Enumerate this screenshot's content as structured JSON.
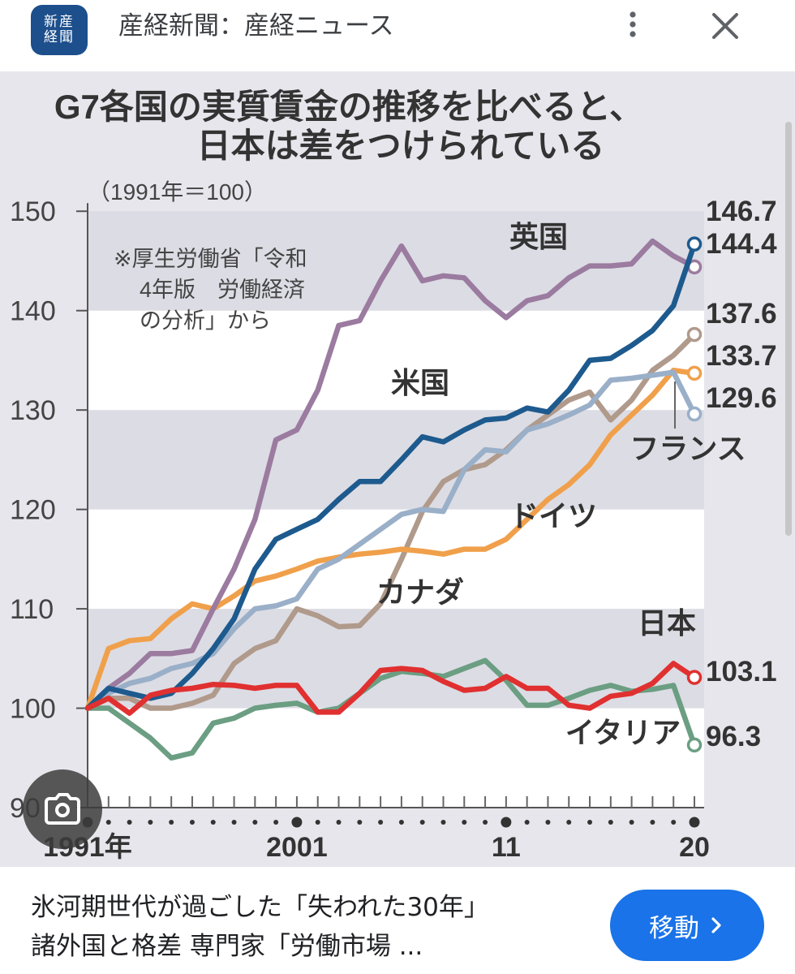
{
  "header": {
    "logo_text": "新産経聞",
    "source_title": "産経新聞：産経ニュース",
    "icons": [
      "more-vert-icon",
      "close-icon"
    ]
  },
  "chart_data": {
    "type": "line",
    "title_lines": [
      "G7各国の実質賃金の推移を比べると、",
      "日本は差をつけられている"
    ],
    "unit_note": "（1991年＝100）",
    "source_note": [
      "※厚生労働省「令和",
      "4年版　労働経済",
      "の分析」から"
    ],
    "x_tick_labels": [
      {
        "year": 1991,
        "label": "1991年"
      },
      {
        "year": 2001,
        "label": "2001"
      },
      {
        "year": 2011,
        "label": "11"
      },
      {
        "year": 2020,
        "label": "20"
      }
    ],
    "x_range": [
      1991,
      2020
    ],
    "y_ticks": [
      90,
      100,
      110,
      120,
      130,
      140,
      150
    ],
    "y_tick_labels": [
      "90",
      "100",
      "110",
      "120",
      "130",
      "140",
      "150"
    ],
    "ylim": [
      90,
      151
    ],
    "x": [
      1991,
      1992,
      1993,
      1994,
      1995,
      1996,
      1997,
      1998,
      1999,
      2000,
      2001,
      2002,
      2003,
      2004,
      2005,
      2006,
      2007,
      2008,
      2009,
      2010,
      2011,
      2012,
      2013,
      2014,
      2015,
      2016,
      2017,
      2018,
      2019,
      2020
    ],
    "series": [
      {
        "name": "英国",
        "color": "#9b7b9f",
        "end_label": "144.4",
        "values": [
          100,
          102,
          103.5,
          105.5,
          105.5,
          105.8,
          110,
          114,
          119,
          127,
          128,
          132,
          138.5,
          139,
          143,
          146.5,
          143,
          143.5,
          143.3,
          141,
          139.3,
          141,
          141.5,
          143.3,
          144.5,
          144.5,
          144.7,
          147,
          145.5,
          144.4
        ]
      },
      {
        "name": "米国",
        "color": "#1d5a8e",
        "end_label": "146.7",
        "values": [
          100,
          102,
          101.5,
          101,
          101.5,
          103.5,
          106,
          109,
          114,
          117,
          118,
          119,
          121,
          122.8,
          122.8,
          125,
          127.3,
          126.8,
          128,
          129,
          129.2,
          130.2,
          129.8,
          132,
          135,
          135.2,
          136.5,
          138,
          140.5,
          146.7
        ]
      },
      {
        "name": "フランス",
        "color": "#9aafc8",
        "end_label": "129.6",
        "values": [
          100,
          101.5,
          102.5,
          103,
          104,
          104.5,
          105.5,
          108,
          110,
          110.3,
          111,
          114,
          115,
          116.5,
          118,
          119.5,
          120,
          119.8,
          124,
          126,
          125.8,
          128,
          128.6,
          129.5,
          130.5,
          133,
          133.2,
          133.5,
          133.8,
          129.6
        ]
      },
      {
        "name": "ドイツ",
        "color": "#f0a04b",
        "end_label": "133.7",
        "values": [
          100,
          106,
          106.8,
          107,
          109,
          110.5,
          110,
          111.3,
          112.8,
          113.3,
          114,
          114.8,
          115.2,
          115.5,
          115.7,
          116,
          115.8,
          115.5,
          116,
          116,
          117,
          119,
          121,
          122.5,
          124.5,
          127.5,
          129.5,
          131.5,
          134,
          133.7
        ]
      },
      {
        "name": "カナダ",
        "color": "#b09a8b",
        "end_label": "137.6",
        "values": [
          100,
          101,
          101,
          100,
          100,
          100.5,
          101.3,
          104.5,
          106,
          106.8,
          110,
          109.3,
          108.2,
          108.3,
          110.5,
          115,
          119.8,
          122.8,
          124,
          124.5,
          126,
          128,
          129.5,
          131,
          131.8,
          129,
          131,
          134,
          135.5,
          137.6
        ]
      },
      {
        "name": "日本",
        "color": "#e03030",
        "end_label": "103.1",
        "values": [
          100,
          101,
          99.5,
          101.3,
          101.8,
          102,
          102.4,
          102.3,
          102,
          102.3,
          102.3,
          99.6,
          99.6,
          101.5,
          103.8,
          104,
          103.8,
          102.7,
          101.8,
          102,
          103.2,
          102,
          102,
          100.3,
          100,
          101.2,
          101.5,
          102.5,
          104.5,
          103.1
        ]
      },
      {
        "name": "イタリア",
        "color": "#6b9e82",
        "end_label": "96.3",
        "values": [
          100,
          100,
          98.5,
          97,
          95,
          95.5,
          98.5,
          99,
          100,
          100.3,
          100.5,
          99.6,
          100,
          101.5,
          103,
          103.7,
          103.5,
          103.2,
          104,
          104.8,
          102.8,
          100.3,
          100.3,
          101,
          101.8,
          102.3,
          101.7,
          101.9,
          102.3,
          96.3
        ]
      }
    ]
  },
  "overlay": {
    "lens_icon": "google-lens-icon"
  },
  "footer": {
    "caption_line1": "氷河期世代が過ごした「失われた30年」",
    "caption_line2": "諸外国と格差 専門家「労働市場 ...",
    "button_label": "移動",
    "button_icon": "chevron-right-icon",
    "accent": "#1a73e8"
  }
}
